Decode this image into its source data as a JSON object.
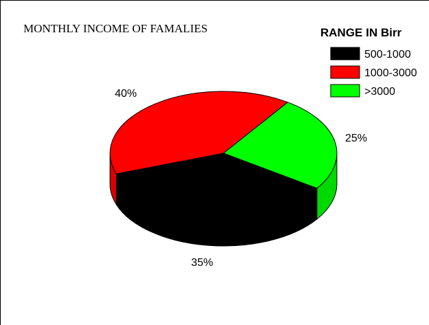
{
  "chart_data": {
    "type": "pie",
    "title": "MONTHLY INCOME OF FAMALIES",
    "legend_title": "RANGE IN Birr",
    "legend_position": "top-right",
    "three_d": true,
    "slices": [
      {
        "label": "500-1000",
        "value": 35,
        "value_label": "35%",
        "color": "#000000"
      },
      {
        "label": "1000-3000",
        "value": 40,
        "value_label": "40%",
        "color": "#ff0000"
      },
      {
        "label": ">3000",
        "value": 25,
        "value_label": "25%",
        "color": "#00ff00"
      }
    ]
  }
}
